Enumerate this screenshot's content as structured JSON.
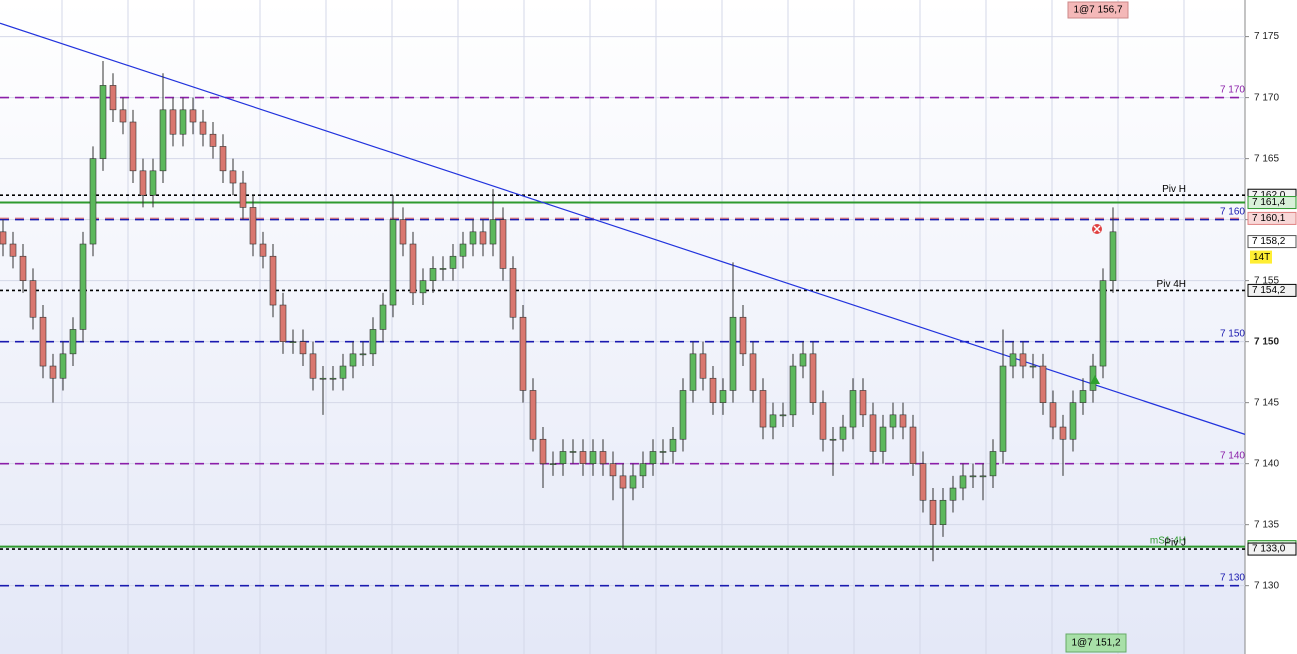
{
  "chart_data": {
    "type": "candlestick",
    "ylim": [
      7124.4,
      7178
    ],
    "yticks": [
      {
        "value": 7130,
        "label": "7 130"
      },
      {
        "value": 7135,
        "label": "7 135"
      },
      {
        "value": 7140,
        "label": "7 140"
      },
      {
        "value": 7145,
        "label": "7 145"
      },
      {
        "value": 7150,
        "label": "7 150"
      },
      {
        "value": 7155,
        "label": "7 155"
      },
      {
        "value": 7160,
        "label": "7 160"
      },
      {
        "value": 7165,
        "label": "7 165"
      },
      {
        "value": 7170,
        "label": "7 170"
      },
      {
        "value": 7175,
        "label": "7 175"
      }
    ],
    "grid": true,
    "up_color": "#5cb85c",
    "down_color": "#d9776f",
    "candles": {
      "open": [
        7159,
        7158,
        7157,
        7155,
        7152,
        7148,
        7147,
        7149,
        7151,
        7158,
        7165,
        7171,
        7169,
        7168,
        7164,
        7162,
        7164,
        7169,
        7167,
        7169,
        7168,
        7167,
        7166,
        7164,
        7163,
        7161,
        7158,
        7157,
        7153,
        7150,
        7150,
        7149,
        7147,
        7147,
        7147,
        7148,
        7149,
        7149,
        7151,
        7153,
        7160,
        7158,
        7154,
        7155,
        7156,
        7156,
        7157,
        7158,
        7159,
        7158,
        7160,
        7156,
        7152,
        7146,
        7142,
        7140,
        7140,
        7141,
        7141,
        7140,
        7141,
        7140,
        7139,
        7138,
        7139,
        7140,
        7141,
        7141,
        7142,
        7146,
        7149,
        7147,
        7145,
        7146,
        7152,
        7149,
        7146,
        7143,
        7144,
        7144,
        7148,
        7149,
        7145,
        7142,
        7142,
        7143,
        7146,
        7144,
        7141,
        7143,
        7144,
        7143,
        7140,
        7137,
        7135,
        7137,
        7138,
        7139,
        7139,
        7139,
        7141,
        7148,
        7149,
        7148,
        7148,
        7145,
        7143,
        7142,
        7145,
        7146,
        7148,
        7155
      ],
      "high": [
        7160,
        7159,
        7158,
        7156,
        7153,
        7149,
        7150,
        7152,
        7159,
        7166,
        7173,
        7172,
        7170,
        7169,
        7165,
        7165,
        7172,
        7170,
        7170,
        7170,
        7169,
        7168,
        7167,
        7165,
        7164,
        7162,
        7159,
        7158,
        7154,
        7151,
        7151,
        7150,
        7148,
        7148,
        7149,
        7150,
        7150,
        7152,
        7154,
        7162,
        7161,
        7159,
        7156,
        7157,
        7157,
        7158,
        7159,
        7160,
        7160,
        7162.5,
        7161,
        7157,
        7153,
        7147,
        7143,
        7141,
        7142,
        7142,
        7142,
        7142,
        7142,
        7141,
        7140,
        7140,
        7141,
        7142,
        7142,
        7143,
        7147,
        7150,
        7150,
        7148,
        7147,
        7156.5,
        7153,
        7150,
        7147,
        7145,
        7145,
        7149,
        7150,
        7150,
        7146,
        7143,
        7144,
        7147,
        7147,
        7145,
        7144,
        7145,
        7145,
        7144,
        7141,
        7138,
        7138,
        7139,
        7140,
        7140,
        7140,
        7142,
        7151,
        7150,
        7150,
        7149,
        7149,
        7146,
        7144,
        7146,
        7147,
        7149,
        7156,
        7161
      ],
      "low": [
        7157,
        7156,
        7154,
        7151,
        7147,
        7145,
        7146,
        7148,
        7150,
        7157,
        7164,
        7168,
        7167,
        7163,
        7161,
        7161,
        7163,
        7166,
        7166,
        7167,
        7166,
        7165,
        7163,
        7162,
        7160,
        7157,
        7156,
        7152,
        7149,
        7149,
        7148,
        7146,
        7144,
        7146,
        7146,
        7147,
        7148,
        7148,
        7150,
        7152,
        7157,
        7153,
        7153,
        7154,
        7155,
        7155,
        7156,
        7157,
        7157,
        7157,
        7155,
        7151,
        7145,
        7141,
        7138,
        7139,
        7139,
        7140,
        7139,
        7139,
        7139,
        7137,
        7133,
        7137,
        7138,
        7139,
        7140,
        7140,
        7141,
        7145,
        7146,
        7144,
        7144,
        7145,
        7148,
        7145,
        7142,
        7142,
        7143,
        7143,
        7147,
        7144,
        7141,
        7139,
        7141,
        7142,
        7143,
        7140,
        7140,
        7142,
        7142,
        7139,
        7136,
        7132,
        7134,
        7136,
        7137,
        7138,
        7137,
        7138,
        7140,
        7147,
        7147,
        7147,
        7144,
        7142,
        7139,
        7141,
        7144,
        7145,
        7147,
        7154
      ],
      "close": [
        7158,
        7157,
        7155,
        7152,
        7148,
        7147,
        7149,
        7151,
        7158,
        7165,
        7171,
        7169,
        7168,
        7164,
        7162,
        7164,
        7169,
        7167,
        7169,
        7168,
        7167,
        7166,
        7164,
        7163,
        7161,
        7158,
        7157,
        7153,
        7150,
        7150,
        7149,
        7147,
        7147,
        7147,
        7148,
        7149,
        7149,
        7151,
        7153,
        7160,
        7158,
        7154,
        7155,
        7156,
        7156,
        7157,
        7158,
        7159,
        7158,
        7160,
        7156,
        7152,
        7146,
        7142,
        7140,
        7140,
        7141,
        7141,
        7140,
        7141,
        7140,
        7139,
        7138,
        7139,
        7140,
        7141,
        7141,
        7142,
        7146,
        7149,
        7147,
        7145,
        7146,
        7152,
        7149,
        7146,
        7143,
        7144,
        7144,
        7148,
        7149,
        7145,
        7142,
        7142,
        7143,
        7146,
        7144,
        7141,
        7143,
        7144,
        7143,
        7140,
        7137,
        7135,
        7137,
        7138,
        7139,
        7139,
        7139,
        7141,
        7148,
        7149,
        7148,
        7148,
        7145,
        7143,
        7142,
        7145,
        7146,
        7148,
        7155,
        7159
      ]
    },
    "trendline": {
      "color": "#2233dd",
      "start": [
        -0.3,
        7176.1
      ],
      "end": [
        124.2,
        7142.4
      ]
    },
    "levels": [
      {
        "value": 7170,
        "label": "7 170",
        "color": "#8b1fa9",
        "style": "dashed"
      },
      {
        "value": 7162.0,
        "label": "Piv H",
        "color": "#000000",
        "style": "dotted",
        "price_label": "7 162,0"
      },
      {
        "value": 7161.4,
        "color": "#2e9a2e",
        "style": "solid",
        "price_label": "7 161,4"
      },
      {
        "value": 7160.1,
        "color": "#e08080",
        "style": "dashed",
        "price_label": "7 160,1"
      },
      {
        "value": 7160,
        "label": "7 160",
        "color": "#1a1ab0",
        "style": "dashed"
      },
      {
        "value": 7154.2,
        "label": "Piv 4H",
        "color": "#000000",
        "style": "dotted",
        "price_label": "7 154,2"
      },
      {
        "value": 7150,
        "label": "7 150",
        "color": "#1a1ab0",
        "style": "dashed"
      },
      {
        "value": 7140,
        "label": "7 140",
        "color": "#8b1fa9",
        "style": "dashed"
      },
      {
        "value": 7133.2,
        "label": "mS1 4H",
        "color": "#2e9a2e",
        "style": "solid",
        "price_label": "7 133,2"
      },
      {
        "value": 7133.0,
        "label": "Piv J",
        "color": "#000000",
        "style": "dotted",
        "price_label": "7 133,0"
      },
      {
        "value": 7130,
        "label": "7 130",
        "color": "#1a1ab0",
        "style": "dashed"
      }
    ],
    "last": {
      "value": 7158.2,
      "label": "7 158,2",
      "timer": "14T"
    },
    "orders": {
      "top": "1@7 156,7",
      "bottom": "1@7 151,2"
    }
  }
}
